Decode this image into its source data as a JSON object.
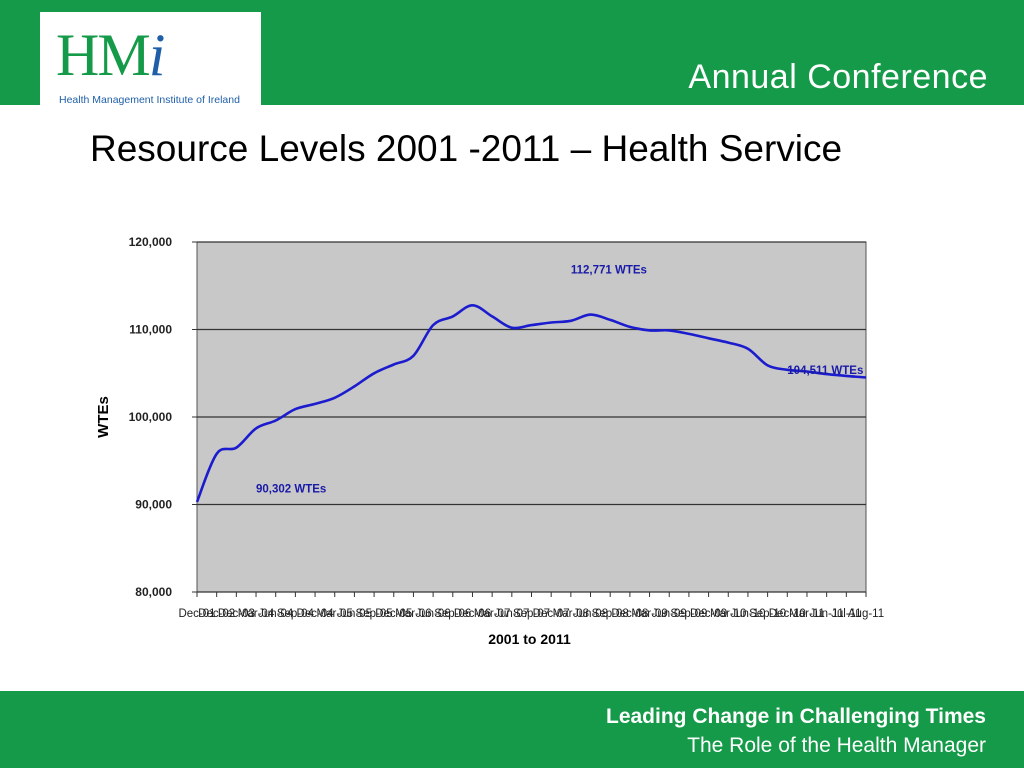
{
  "header": {
    "logo_text": "HM",
    "logo_i": "i",
    "logo_tagline": "Health Management Institute of Ireland",
    "title": "Annual Conference"
  },
  "slide": {
    "title": "Resource Levels 2001 -2011 –  Health Service"
  },
  "footer": {
    "line1": "Leading Change in Challenging Times",
    "line2": "The Role of the Health Manager"
  },
  "colors": {
    "brand_green": "#149a48",
    "line_blue": "#1c1ccf",
    "plot_bg": "#c8c8c8"
  },
  "chart_data": {
    "type": "line",
    "title": "",
    "xlabel": "2001 to 2011",
    "ylabel": "WTEs",
    "ylim": [
      80000,
      120000
    ],
    "yticks": [
      80000,
      90000,
      100000,
      110000,
      120000
    ],
    "ytick_labels": [
      "80,000",
      "90,000",
      "100,000",
      "110,000",
      "120,000"
    ],
    "grid": true,
    "categories": [
      "Dec-01",
      "Dec-02",
      "Dec-03",
      "Mar-04",
      "Jun-04",
      "Sep-04",
      "Dec-04",
      "Mar-05",
      "Jun-05",
      "Sep-05",
      "Dec-05",
      "Mar-06",
      "Jun-06",
      "Sep-06",
      "Dec-06",
      "Mar-07",
      "Jun-07",
      "Sep-07",
      "Dec-07",
      "Mar-08",
      "Jun-08",
      "Sep-08",
      "Dec-08",
      "Mar-09",
      "Jun-09",
      "Sep-09",
      "Dec-09",
      "Mar-10",
      "Jun-10",
      "Sep-10",
      "Dec-10",
      "Mar-11",
      "Jun-11",
      "Jul-11",
      "Aug-11"
    ],
    "series": [
      {
        "values": [
          90302,
          95800,
          96500,
          98700,
          99600,
          100900,
          101500,
          102200,
          103500,
          105000,
          106000,
          107000,
          110500,
          111500,
          112771,
          111500,
          110200,
          110500,
          110800,
          111000,
          111700,
          111100,
          110300,
          109900,
          109900,
          109500,
          109000,
          108500,
          107800,
          105900,
          105400,
          105200,
          104900,
          104700,
          104511
        ]
      }
    ],
    "annotations": [
      {
        "text": "90,302 WTEs",
        "category": "Mar-04",
        "y": 91400
      },
      {
        "text": "112,771 WTEs",
        "category": "Mar-08",
        "y": 116400
      },
      {
        "text": "104,511 WTEs",
        "category": "Dec-10",
        "y": 104900
      }
    ]
  }
}
